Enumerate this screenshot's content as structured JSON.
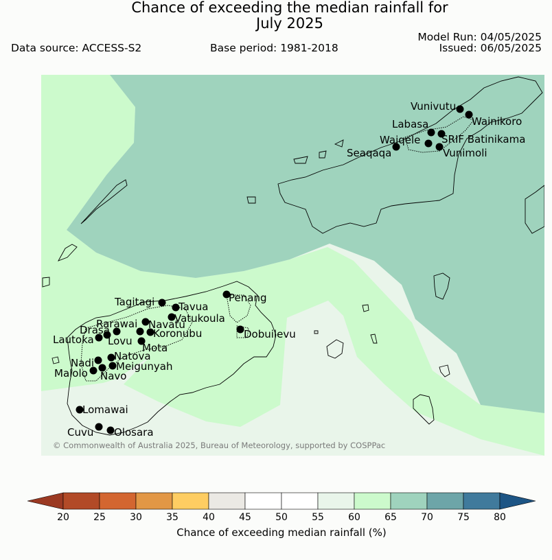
{
  "title": {
    "line1": "Chance of exceeding the median rainfall for",
    "line2": "July 2025"
  },
  "header": {
    "data_source": "Data source: ACCESS-S2",
    "base_period": "Base period: 1981-2018",
    "model_run": "Model Run: 04/05/2025",
    "issued": "Issued: 06/05/2025"
  },
  "map": {
    "copyright": "© Commonwealth of Australia 2025, Bureau of Meteorology, supported by COSPPac",
    "zone_colors": {
      "45-55": "#ffffff",
      "55-60": "#e9f5ea",
      "60-65": "#ccfacc",
      "65-70": "#9fd3bd"
    },
    "stations": [
      {
        "name": "Vunivutu"
      },
      {
        "name": "Wainikoro"
      },
      {
        "name": "Labasa"
      },
      {
        "name": "SRIF Batinikama"
      },
      {
        "name": "Waiqele"
      },
      {
        "name": "Seaqaqa"
      },
      {
        "name": "Vunimoli"
      },
      {
        "name": "Tagitagi"
      },
      {
        "name": "Penang"
      },
      {
        "name": "Tavua"
      },
      {
        "name": "Vatukoula"
      },
      {
        "name": "Rarawai"
      },
      {
        "name": "Navatu"
      },
      {
        "name": "Drasa"
      },
      {
        "name": "Koronubu"
      },
      {
        "name": "Lautoka"
      },
      {
        "name": "Lovu"
      },
      {
        "name": "Dobuilevu"
      },
      {
        "name": "Mota"
      },
      {
        "name": "Natova"
      },
      {
        "name": "Nadi"
      },
      {
        "name": "Meigunyah"
      },
      {
        "name": "Malolo"
      },
      {
        "name": "Navo"
      },
      {
        "name": "Lomawai"
      },
      {
        "name": "Cuvu"
      },
      {
        "name": "Olosara"
      }
    ]
  },
  "colorbar": {
    "title": "Chance of exceeding median rainfall (%)",
    "ticks": [
      "20",
      "25",
      "30",
      "35",
      "40",
      "45",
      "50",
      "55",
      "60",
      "65",
      "70",
      "75",
      "80"
    ],
    "low_extend_color": "#9b3922",
    "high_extend_color": "#1d5585",
    "bins": [
      {
        "range": "20-25",
        "color": "#b24a27"
      },
      {
        "range": "25-30",
        "color": "#d36630"
      },
      {
        "range": "30-35",
        "color": "#e29745"
      },
      {
        "range": "35-40",
        "color": "#fecd62"
      },
      {
        "range": "40-45",
        "color": "#ebe9e4"
      },
      {
        "range": "45-50",
        "color": "#ffffff"
      },
      {
        "range": "50-55",
        "color": "#ffffff"
      },
      {
        "range": "55-60",
        "color": "#e9f5ea"
      },
      {
        "range": "60-65",
        "color": "#ccfacc"
      },
      {
        "range": "65-70",
        "color": "#9fd3bd"
      },
      {
        "range": "70-75",
        "color": "#6da5a8"
      },
      {
        "range": "75-80",
        "color": "#407a9c"
      }
    ]
  }
}
